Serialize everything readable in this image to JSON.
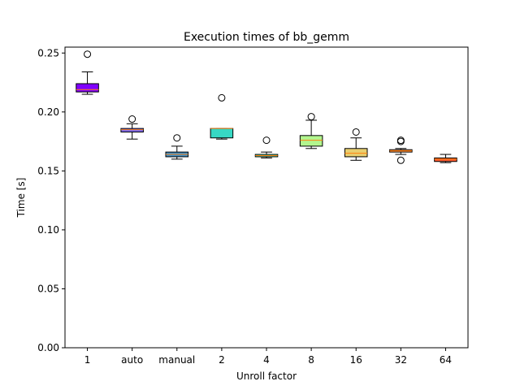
{
  "chart_data": {
    "type": "box",
    "title": "Execution times of bb_gemm",
    "xlabel": "Unroll factor",
    "ylabel": "Time [s]",
    "ylim": [
      0.0,
      0.255
    ],
    "yticks": [
      "0.00",
      "0.05",
      "0.10",
      "0.15",
      "0.20",
      "0.25"
    ],
    "ytick_values": [
      0.0,
      0.05,
      0.1,
      0.15,
      0.2,
      0.25
    ],
    "grid": false,
    "categories": [
      "1",
      "auto",
      "manual",
      "2",
      "4",
      "8",
      "16",
      "32",
      "64"
    ],
    "boxes": [
      {
        "category": "1",
        "color": "#8000ff",
        "whislo": 0.215,
        "q1": 0.217,
        "med": 0.219,
        "q3": 0.224,
        "whishi": 0.234,
        "fliers": [
          0.249
        ]
      },
      {
        "category": "auto",
        "color": "#7b6cf6",
        "whislo": 0.177,
        "q1": 0.183,
        "med": 0.185,
        "q3": 0.186,
        "whishi": 0.19,
        "fliers": [
          0.194
        ]
      },
      {
        "category": "manual",
        "color": "#3f91c8",
        "whislo": 0.16,
        "q1": 0.162,
        "med": 0.164,
        "q3": 0.166,
        "whishi": 0.171,
        "fliers": [
          0.178
        ]
      },
      {
        "category": "2",
        "color": "#37d8c4",
        "whislo": 0.177,
        "q1": 0.178,
        "med": 0.186,
        "q3": 0.186,
        "whishi": 0.186,
        "fliers": [
          0.212
        ]
      },
      {
        "category": "4",
        "color": "#6ef5b0",
        "whislo": 0.161,
        "q1": 0.162,
        "med": 0.163,
        "q3": 0.164,
        "whishi": 0.166,
        "fliers": [
          0.176
        ]
      },
      {
        "category": "8",
        "color": "#b2f58e",
        "whislo": 0.169,
        "q1": 0.171,
        "med": 0.176,
        "q3": 0.18,
        "whishi": 0.193,
        "fliers": [
          0.196
        ]
      },
      {
        "category": "16",
        "color": "#e8cf70",
        "whislo": 0.159,
        "q1": 0.162,
        "med": 0.165,
        "q3": 0.169,
        "whishi": 0.178,
        "fliers": [
          0.183
        ]
      },
      {
        "category": "32",
        "color": "#ff9a52",
        "whislo": 0.164,
        "q1": 0.166,
        "med": 0.167,
        "q3": 0.168,
        "whishi": 0.169,
        "fliers": [
          0.159,
          0.175,
          0.176
        ]
      },
      {
        "category": "64",
        "color": "#ff5a30",
        "whislo": 0.157,
        "q1": 0.158,
        "med": 0.16,
        "q3": 0.161,
        "whishi": 0.164,
        "fliers": []
      }
    ]
  }
}
